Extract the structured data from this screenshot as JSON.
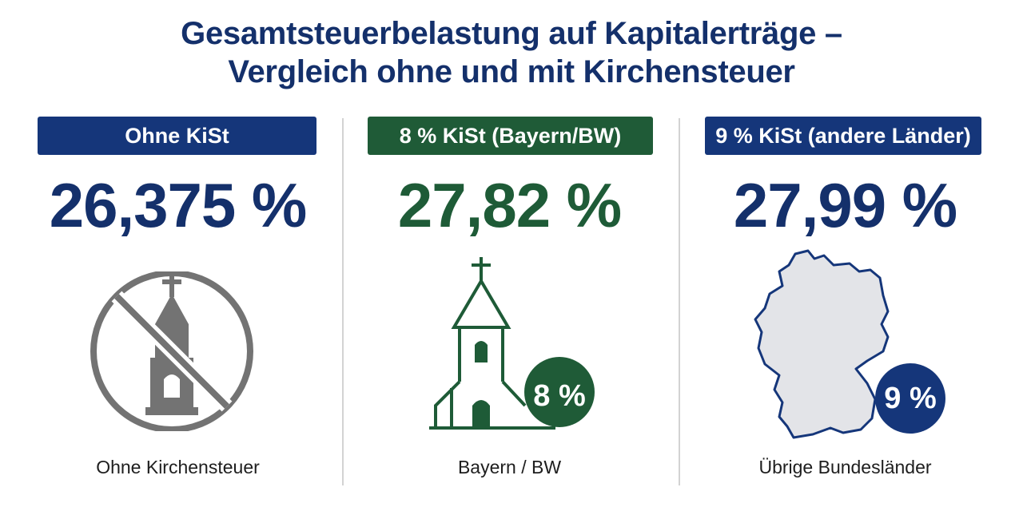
{
  "title": {
    "line1": "Gesamtsteuerbelastung auf Kapitalerträge –",
    "line2": "Vergleich ohne und mit Kirchensteuer"
  },
  "columns": [
    {
      "badge": "Ohne KiSt",
      "value": "26,375 %",
      "caption": "Ohne Kirchensteuer",
      "icon": "no-church-icon",
      "color": "#14306b",
      "badge_color": "#15367a"
    },
    {
      "badge": "8 % KiSt (Bayern/BW)",
      "value": "27,82 %",
      "caption": "Bayern / BW",
      "icon": "church-icon",
      "icon_badge": "8 %",
      "color": "#1e5b37",
      "badge_color": "#1f5b37"
    },
    {
      "badge": "9 % KiSt (andere Länder)",
      "value": "27,99 %",
      "caption": "Übrige Bundesländer",
      "icon": "germany-map-icon",
      "icon_badge": "9 %",
      "color": "#14306b",
      "badge_color": "#15367a"
    }
  ]
}
